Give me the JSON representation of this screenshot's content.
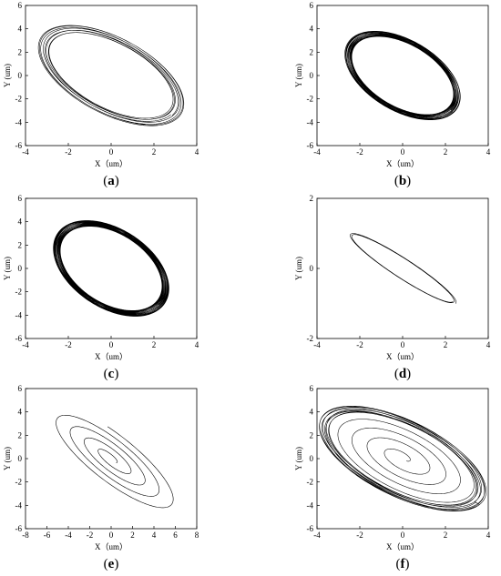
{
  "chart_data": [
    {
      "panel": "(a)",
      "panel_letter": "a",
      "type": "line",
      "xlabel": "X（um）",
      "ylabel": "Y (um)",
      "xlim": [
        -4,
        4
      ],
      "ylim": [
        -6,
        6
      ],
      "xticks": [
        "-4",
        "-2",
        "0",
        "2",
        "4"
      ],
      "yticks": [
        "-6",
        "-4",
        "-2",
        "0",
        "2",
        "4",
        "6"
      ],
      "grid": false,
      "series": [
        {
          "shape": "ellipse-orbit",
          "center": [
            0,
            0
          ],
          "x_extent": [
            -3.4,
            3.4
          ],
          "y_extent": [
            -4.3,
            4.3
          ],
          "loops": 8,
          "spread": 0.15,
          "color": "#000000"
        }
      ]
    },
    {
      "panel": "(b)",
      "panel_letter": "b",
      "type": "line",
      "xlabel": "X（um）",
      "ylabel": "Y (um)",
      "xlim": [
        -4,
        4
      ],
      "ylim": [
        -6,
        6
      ],
      "xticks": [
        "-4",
        "-2",
        "0",
        "2",
        "4"
      ],
      "yticks": [
        "-6",
        "-4",
        "-2",
        "0",
        "2",
        "4",
        "6"
      ],
      "grid": false,
      "series": [
        {
          "shape": "ellipse-orbit",
          "center": [
            0,
            0
          ],
          "x_extent": [
            -2.7,
            2.7
          ],
          "y_extent": [
            -3.8,
            3.8
          ],
          "loops": 20,
          "spread": 0.12,
          "color": "#000000"
        }
      ]
    },
    {
      "panel": "(c)",
      "panel_letter": "c",
      "type": "line",
      "xlabel": "X（um）",
      "ylabel": "Y (um)",
      "xlim": [
        -4,
        4
      ],
      "ylim": [
        -6,
        6
      ],
      "xticks": [
        "-4",
        "-2",
        "0",
        "2",
        "4"
      ],
      "yticks": [
        "-6",
        "-4",
        "-2",
        "0",
        "2",
        "4",
        "6"
      ],
      "grid": false,
      "series": [
        {
          "shape": "ellipse-orbit",
          "center": [
            0,
            0
          ],
          "x_extent": [
            -2.7,
            2.7
          ],
          "y_extent": [
            -4.1,
            4.1
          ],
          "loops": 30,
          "spread": 0.12,
          "color": "#000000"
        }
      ]
    },
    {
      "panel": "(d)",
      "panel_letter": "d",
      "type": "line",
      "xlabel": "X（um）",
      "ylabel": "Y (um)",
      "xlim": [
        -4,
        4
      ],
      "ylim": [
        -2,
        2
      ],
      "xticks": [
        "-4",
        "-2",
        "0",
        "2",
        "4"
      ],
      "yticks": [
        "-2",
        "0",
        "2"
      ],
      "grid": false,
      "series": [
        {
          "shape": "ellipse-orbit",
          "center": [
            0,
            0
          ],
          "x_extent": [
            -2.5,
            2.5
          ],
          "y_extent": [
            -1.0,
            1.0
          ],
          "loops": 2,
          "spread": 0.1,
          "color": "#000000"
        }
      ]
    },
    {
      "panel": "(e)",
      "panel_letter": "e",
      "type": "line",
      "xlabel": "X（um）",
      "ylabel": "Y (um)",
      "xlim": [
        -8,
        8
      ],
      "ylim": [
        -6,
        6
      ],
      "xticks": [
        "-8",
        "-6",
        "-4",
        "-2",
        "0",
        "2",
        "4",
        "6",
        "8"
      ],
      "yticks": [
        "-6",
        "-4",
        "-2",
        "0",
        "2",
        "4",
        "6"
      ],
      "grid": false,
      "series": [
        {
          "shape": "spiral-out",
          "center": [
            0,
            0
          ],
          "x_extent": [
            -5.8,
            5.8
          ],
          "y_extent": [
            -4.2,
            4.2
          ],
          "turns": 4.3,
          "start_radius": 0.08,
          "color": "#000000"
        }
      ]
    },
    {
      "panel": "(f)",
      "panel_letter": "f",
      "type": "line",
      "xlabel": "X（um）",
      "ylabel": "Y (um)",
      "xlim": [
        -4,
        4
      ],
      "ylim": [
        -6,
        6
      ],
      "xticks": [
        "-4",
        "-2",
        "0",
        "2",
        "4"
      ],
      "yticks": [
        "-6",
        "-4",
        "-2",
        "0",
        "2",
        "4",
        "6"
      ],
      "grid": false,
      "series": [
        {
          "shape": "spiral-to-orbit",
          "center": [
            0,
            0
          ],
          "x_extent": [
            -3.9,
            3.9
          ],
          "y_extent": [
            -4.5,
            4.5
          ],
          "turns": 5,
          "start_radius": 0.05,
          "loops": 8,
          "spread": 0.12,
          "color": "#000000"
        }
      ]
    }
  ]
}
